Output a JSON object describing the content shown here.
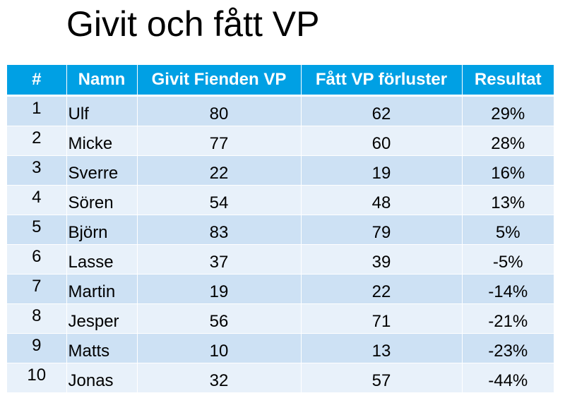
{
  "title": "Givit och fått VP",
  "table": {
    "headers": {
      "rank": "#",
      "name": "Namn",
      "given": "Givit Fienden VP",
      "received": "Fått VP förluster",
      "result": "Resultat"
    },
    "rows": [
      {
        "rank": "1",
        "name": "Ulf",
        "given": "80",
        "received": "62",
        "result": "29%"
      },
      {
        "rank": "2",
        "name": "Micke",
        "given": "77",
        "received": "60",
        "result": "28%"
      },
      {
        "rank": "3",
        "name": "Sverre",
        "given": "22",
        "received": "19",
        "result": "16%"
      },
      {
        "rank": "4",
        "name": "Sören",
        "given": "54",
        "received": "48",
        "result": "13%"
      },
      {
        "rank": "5",
        "name": "Björn",
        "given": "83",
        "received": "79",
        "result": "5%"
      },
      {
        "rank": "6",
        "name": "Lasse",
        "given": "37",
        "received": "39",
        "result": "-5%"
      },
      {
        "rank": "7",
        "name": "Martin",
        "given": "19",
        "received": "22",
        "result": "-14%"
      },
      {
        "rank": "8",
        "name": "Jesper",
        "given": "56",
        "received": "71",
        "result": "-21%"
      },
      {
        "rank": "9",
        "name": "Matts",
        "given": "10",
        "received": "13",
        "result": "-23%"
      },
      {
        "rank": "10",
        "name": "Jonas",
        "given": "32",
        "received": "57",
        "result": "-44%"
      }
    ]
  },
  "colors": {
    "header_bg": "#00a0e4",
    "row_odd_bg": "#cde1f4",
    "row_even_bg": "#e8f1fa"
  }
}
